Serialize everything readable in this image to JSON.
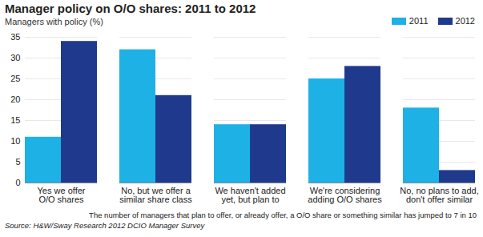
{
  "chart_data": {
    "type": "bar",
    "title": "Manager policy on O/O shares: 2011 to 2012",
    "subtitle": "Managers with policy (%)",
    "categories": [
      "Yes we offer O/O shares",
      "No, but we offer a similar share class",
      "We haven't added yet, but plan to",
      "We're considering adding O/O shares",
      "No, no plans to add, don't offer similar"
    ],
    "series": [
      {
        "name": "2011",
        "color": "#1eb1e6",
        "values": [
          11,
          32,
          14,
          25,
          18
        ]
      },
      {
        "name": "2012",
        "color": "#1f3a8c",
        "values": [
          34,
          21,
          14,
          28,
          3
        ]
      }
    ],
    "ylim": [
      0,
      35
    ],
    "yticks": [
      0,
      5,
      10,
      15,
      20,
      25,
      30,
      35
    ],
    "grid": true,
    "legend": "top-right",
    "annotations": [
      "The number of managers that plan to offer, or already offer, a O/O share or something similar has jumped to 7 in 10"
    ],
    "source": "Source: H&W/Sway Research 2012 DCIO Manager Survey"
  }
}
